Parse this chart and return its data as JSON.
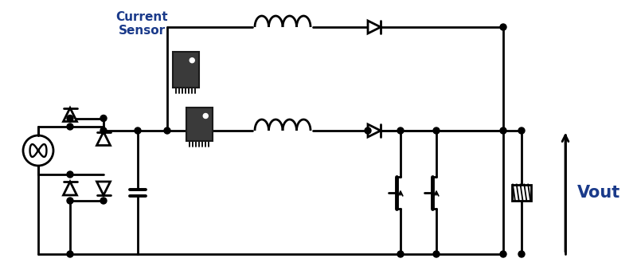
{
  "background_color": "#ffffff",
  "line_color": "#000000",
  "text_color_blue": "#1a3a8a",
  "current_sensor_label": "Current\nSensor",
  "vout_label": "Vout",
  "fig_width": 8.0,
  "fig_height": 3.49,
  "dpi": 100
}
